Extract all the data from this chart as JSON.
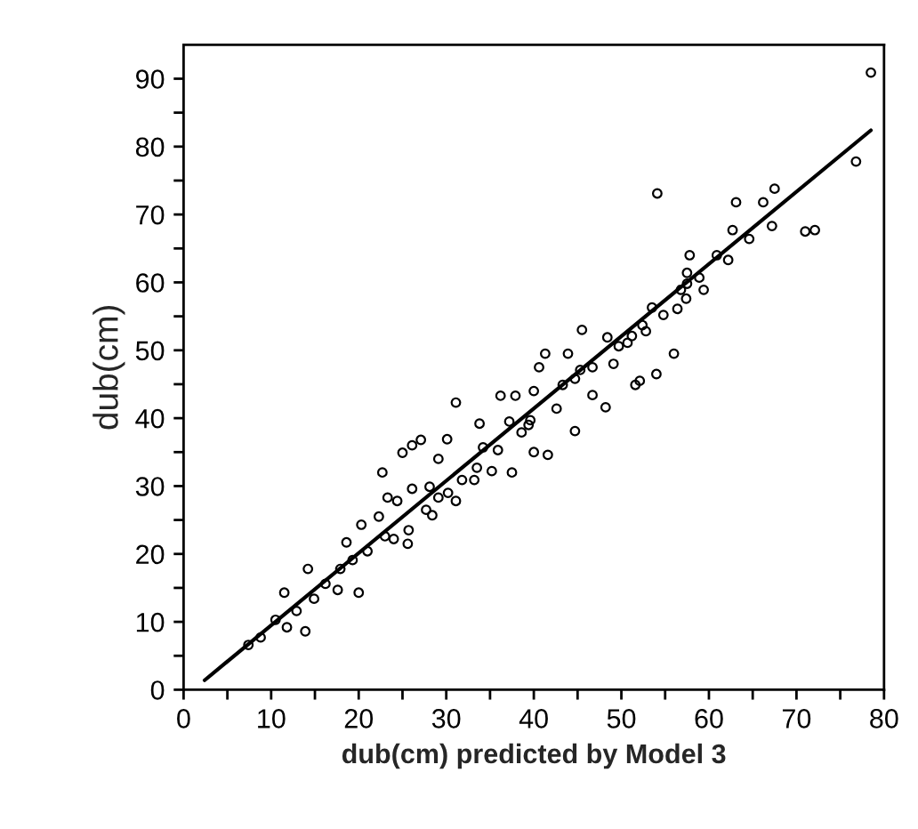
{
  "chart_data": {
    "type": "scatter",
    "xlabel": "dub(cm) predicted by Model 3",
    "ylabel": "dub(cm)",
    "xlim": [
      0,
      80
    ],
    "ylim": [
      0,
      95
    ],
    "xticks": [
      0,
      {
        "value": 5,
        "label": null
      },
      10,
      {
        "value": 15,
        "label": null
      },
      20,
      {
        "value": 25,
        "label": null
      },
      30,
      {
        "value": 35,
        "label": null
      },
      40,
      {
        "value": 45,
        "label": null
      },
      50,
      {
        "value": 55,
        "label": null
      },
      60,
      {
        "value": 65,
        "label": null
      },
      70,
      {
        "value": 75,
        "label": null
      },
      80
    ],
    "yticks": [
      0,
      {
        "value": 5,
        "label": null
      },
      10,
      {
        "value": 15,
        "label": null
      },
      20,
      {
        "value": 25,
        "label": null
      },
      30,
      {
        "value": 35,
        "label": null
      },
      40,
      {
        "value": 45,
        "label": null
      },
      50,
      {
        "value": 55,
        "label": null
      },
      60,
      {
        "value": 65,
        "label": null
      },
      70,
      {
        "value": 75,
        "label": null
      },
      80,
      {
        "value": 85,
        "label": null
      },
      90
    ],
    "grid": false,
    "legend": false,
    "marker": "circle",
    "series": [
      {
        "color": "#000000",
        "x": [
          78.5,
          76.8,
          54.1,
          63.1,
          66.2,
          67.5,
          67.2,
          71.0,
          72.1,
          62.7,
          64.6,
          57.8,
          60.9,
          57.5,
          56.8,
          59.4,
          57.4,
          56.4,
          54.8,
          53.5,
          52.8,
          51.2,
          48.4,
          49.7,
          45.5,
          49.1,
          56.0,
          54.0,
          52.1,
          51.6,
          48.2,
          46.7,
          44.7,
          45.3,
          43.3,
          41.3,
          43.9,
          40.6,
          40.0,
          39.4,
          41.6,
          40.0,
          37.5,
          36.2,
          37.9,
          37.2,
          34.2,
          33.8,
          35.2,
          33.2,
          31.1,
          30.1,
          29.1,
          31.1,
          30.2,
          28.1,
          27.1,
          26.1,
          25.0,
          22.7,
          26.1,
          24.4,
          28.4,
          25.7,
          25.6,
          23.3,
          22.3,
          20.3,
          18.6,
          20.0,
          14.2,
          13.9,
          11.8,
          11.5,
          17.6,
          7.4,
          8.8,
          10.5,
          12.9,
          14.9,
          16.2,
          17.9,
          19.3,
          21.0,
          23.0,
          24.0,
          27.7,
          29.1,
          31.8,
          33.5,
          35.9,
          38.6,
          39.6,
          42.6,
          44.7,
          46.7,
          50.7,
          52.4,
          57.5,
          62.2,
          58.9
        ],
        "values": [
          90.9,
          77.8,
          73.1,
          71.8,
          71.8,
          73.8,
          68.3,
          67.5,
          67.7,
          67.7,
          66.4,
          64.0,
          64.0,
          61.4,
          58.9,
          58.9,
          57.6,
          56.1,
          55.2,
          56.3,
          52.8,
          52.1,
          51.9,
          50.6,
          53.0,
          48.0,
          49.5,
          46.5,
          45.5,
          44.9,
          41.6,
          43.4,
          38.1,
          47.1,
          44.9,
          49.5,
          49.5,
          47.5,
          44.0,
          39.0,
          34.6,
          35.0,
          32.0,
          43.3,
          43.3,
          39.5,
          35.7,
          39.2,
          32.2,
          30.9,
          42.3,
          36.9,
          34.0,
          27.8,
          29.0,
          29.9,
          36.8,
          36.0,
          34.9,
          32.0,
          29.6,
          27.8,
          25.7,
          23.5,
          21.5,
          28.3,
          25.5,
          24.3,
          21.7,
          14.3,
          17.8,
          8.6,
          9.2,
          14.3,
          14.7,
          6.6,
          7.7,
          10.3,
          11.6,
          13.4,
          15.6,
          17.8,
          19.1,
          20.4,
          22.6,
          22.2,
          26.5,
          28.3,
          30.9,
          32.7,
          35.3,
          37.9,
          39.7,
          41.4,
          45.8,
          47.5,
          51.1,
          53.7,
          59.8,
          63.3,
          60.7
        ]
      },
      {
        "type": "line",
        "color": "#000000",
        "marker": "none",
        "line_style": "solid",
        "x": [
          2.4,
          78.5
        ],
        "values": [
          1.4,
          82.4
        ]
      }
    ]
  }
}
